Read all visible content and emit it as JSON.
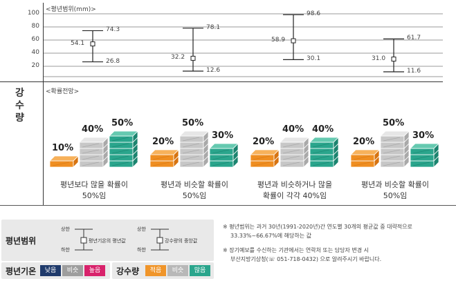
{
  "range_chart": {
    "title": "<평년범위(mm)>",
    "yticks": [
      "100",
      "80",
      "60",
      "40",
      "20"
    ],
    "ylim": [
      0,
      100
    ],
    "items": [
      {
        "mid": 54.1,
        "low": 26.8,
        "high": 74.3,
        "mid_label": "54.1",
        "low_label": "26.8",
        "high_label": "74.3"
      },
      {
        "mid": 32.2,
        "low": 12.6,
        "high": 78.1,
        "mid_label": "32.2",
        "low_label": "12.6",
        "high_label": "78.1"
      },
      {
        "mid": 58.9,
        "low": 30.1,
        "high": 98.6,
        "mid_label": "58.9",
        "low_label": "30.1",
        "high_label": "98.6"
      },
      {
        "mid": 31.0,
        "low": 11.6,
        "high": 61.7,
        "mid_label": "31.0",
        "low_label": "11.6",
        "high_label": "61.7"
      }
    ]
  },
  "side": {
    "title": "강수량"
  },
  "prob": {
    "title": "<확률전망>",
    "groups": [
      {
        "below": "10%",
        "normal": "40%",
        "above": "50%",
        "caption1": "평년보다 많을 확률이",
        "caption2": "50%임"
      },
      {
        "below": "20%",
        "normal": "50%",
        "above": "30%",
        "caption1": "평년과 비슷할 확률이",
        "caption2": "50%임"
      },
      {
        "below": "20%",
        "normal": "40%",
        "above": "40%",
        "caption1": "평년과 비슷하거나 많을",
        "caption2": "확률이 각각 40%임"
      },
      {
        "below": "20%",
        "normal": "50%",
        "above": "30%",
        "caption1": "평년과 비슷할 확률이",
        "caption2": "50%임"
      }
    ]
  },
  "legend": {
    "range_title": "평년범위",
    "upper": "상한",
    "lower": "하한",
    "temp_mean": "평년기온의 평년값",
    "precip_median": "강수량의 중앙값",
    "temp_title": "평년기온",
    "temp_low": "낮음",
    "temp_similar": "비슷",
    "temp_high": "높음",
    "precip_title": "강수량",
    "precip_low": "적음",
    "precip_similar": "비슷",
    "precip_high": "많음"
  },
  "notes": {
    "line1": "※  평년범위는 과거 30년(1991-2020년)간 연도별 30개의 평균값 중 대략적으로",
    "line2": "33.33%~66.67%에 해당하는 값",
    "line3": "※  장기예보를 수신하는 기관에서는 연락처 또는 담당자 변경 시",
    "line4": "부산지방기상청(☏ 051-718-0432) 으로 알려주시기 바랍니다."
  },
  "colors": {
    "orange": "#f0952a",
    "gray": "#b8b8b8",
    "teal": "#2aa58c",
    "temp_low": "#1f3a6b",
    "temp_similar": "#9e9e9e",
    "temp_high": "#d8226b"
  }
}
